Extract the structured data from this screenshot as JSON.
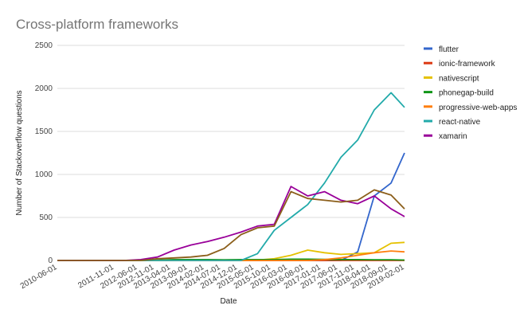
{
  "chart_data": {
    "type": "line",
    "title": "Cross-platform frameworks",
    "xlabel": "Date",
    "ylabel": "Number of Stackoverflow questions",
    "ylim": [
      0,
      2500
    ],
    "y_ticks": [
      "0",
      "500",
      "1000",
      "1500",
      "2000",
      "2500"
    ],
    "grid": true,
    "legend_position": "right",
    "x": [
      "2010-06-01",
      "2010-11-01",
      "2011-04-01",
      "2011-09-01",
      "2012-02-01",
      "2012-07-01",
      "2012-12-01",
      "2013-05-01",
      "2013-10-01",
      "2014-03-01",
      "2014-08-01",
      "2015-01-01",
      "2015-06-01",
      "2015-11-01",
      "2016-04-01",
      "2016-09-01",
      "2017-02-01",
      "2017-07-01",
      "2017-12-01",
      "2018-05-01",
      "2018-10-01",
      "2019-02-01"
    ],
    "x_tick_labels": [
      "2010-06-01",
      "2011-11-01",
      "2012-06-01",
      "2012-11-01",
      "2013-04-01",
      "2013-09-01",
      "2014-02-01",
      "2014-07-01",
      "2014-12-01",
      "2015-05-01",
      "2015-10-01",
      "2016-03-01",
      "2016-08-01",
      "2017-01-01",
      "2017-06-01",
      "2017-11-01",
      "2018-04-01",
      "2018-09-01",
      "2019-02-01"
    ],
    "series": [
      {
        "name": "flutter",
        "color": "#3366cc",
        "values": [
          0,
          0,
          0,
          0,
          0,
          0,
          0,
          0,
          0,
          0,
          0,
          0,
          0,
          0,
          0,
          0,
          0,
          0,
          100,
          750,
          900,
          1250
        ]
      },
      {
        "name": "ionic-framework",
        "color": "#dc3912",
        "values": [
          0,
          0,
          0,
          0,
          0,
          0,
          0,
          0,
          0,
          0,
          0,
          0,
          0,
          0,
          0,
          0,
          0,
          0,
          0,
          0,
          0,
          0
        ]
      },
      {
        "name": "nativescript",
        "color": "#e5c100",
        "values": [
          0,
          0,
          0,
          0,
          0,
          0,
          0,
          0,
          0,
          0,
          0,
          0,
          5,
          20,
          60,
          120,
          90,
          70,
          80,
          90,
          200,
          210
        ]
      },
      {
        "name": "phonegap-build",
        "color": "#109618",
        "values": [
          0,
          0,
          0,
          0,
          0,
          0,
          5,
          10,
          10,
          10,
          8,
          10,
          10,
          10,
          15,
          15,
          12,
          10,
          10,
          8,
          8,
          5
        ]
      },
      {
        "name": "progressive-web-apps",
        "color": "#ff7f0e",
        "values": [
          0,
          0,
          0,
          0,
          0,
          0,
          0,
          0,
          0,
          0,
          0,
          0,
          0,
          0,
          0,
          0,
          10,
          30,
          60,
          90,
          110,
          100
        ]
      },
      {
        "name": "react-native",
        "color": "#22aaaa",
        "values": [
          0,
          0,
          0,
          0,
          0,
          0,
          0,
          0,
          0,
          0,
          0,
          0,
          80,
          350,
          500,
          650,
          900,
          1200,
          1400,
          1750,
          1950,
          1780
        ]
      },
      {
        "name": "xamarin",
        "color": "#990099",
        "values": [
          0,
          0,
          0,
          0,
          0,
          10,
          40,
          120,
          180,
          220,
          270,
          330,
          400,
          420,
          860,
          750,
          800,
          700,
          660,
          750,
          600,
          510
        ]
      },
      {
        "name": "",
        "color": "#8b5e1a",
        "values": [
          0,
          0,
          0,
          0,
          0,
          0,
          20,
          30,
          40,
          60,
          140,
          300,
          380,
          400,
          800,
          720,
          700,
          680,
          700,
          820,
          760,
          600
        ]
      }
    ]
  }
}
